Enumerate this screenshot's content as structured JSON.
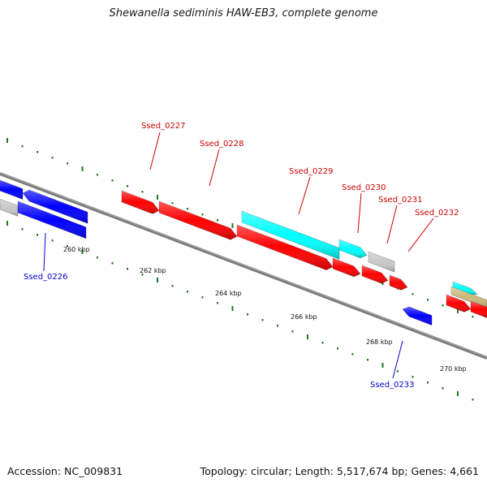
{
  "title": "Shewanella sediminis HAW-EB3, complete genome",
  "footer": {
    "accession": "Accession: NC_009831",
    "summary": "Topology: circular; Length: 5,517,674 bp; Genes: 4,661"
  },
  "colors": {
    "forward_gene": "#ff0000",
    "reverse_gene": "#0000ff",
    "cyan_feature": "#00ffff",
    "gray_feature": "#c8c8c8",
    "tan_feature": "#c8b878",
    "backbone": "#808080",
    "tick_dots": "#1f7a1f",
    "label_forward": "#cc0000",
    "label_reverse": "#0000cc"
  },
  "scale_labels": [
    "260 kbp",
    "262 kbp",
    "264 kbp",
    "266 kbp",
    "268 kbp",
    "270 kbp"
  ],
  "gene_labels": {
    "top": [
      "Ssed_0227",
      "Ssed_0228",
      "Ssed_0229",
      "Ssed_0230",
      "Ssed_0231",
      "Ssed_0232"
    ],
    "bottom": [
      "Ssed_0226",
      "Ssed_0233"
    ]
  }
}
